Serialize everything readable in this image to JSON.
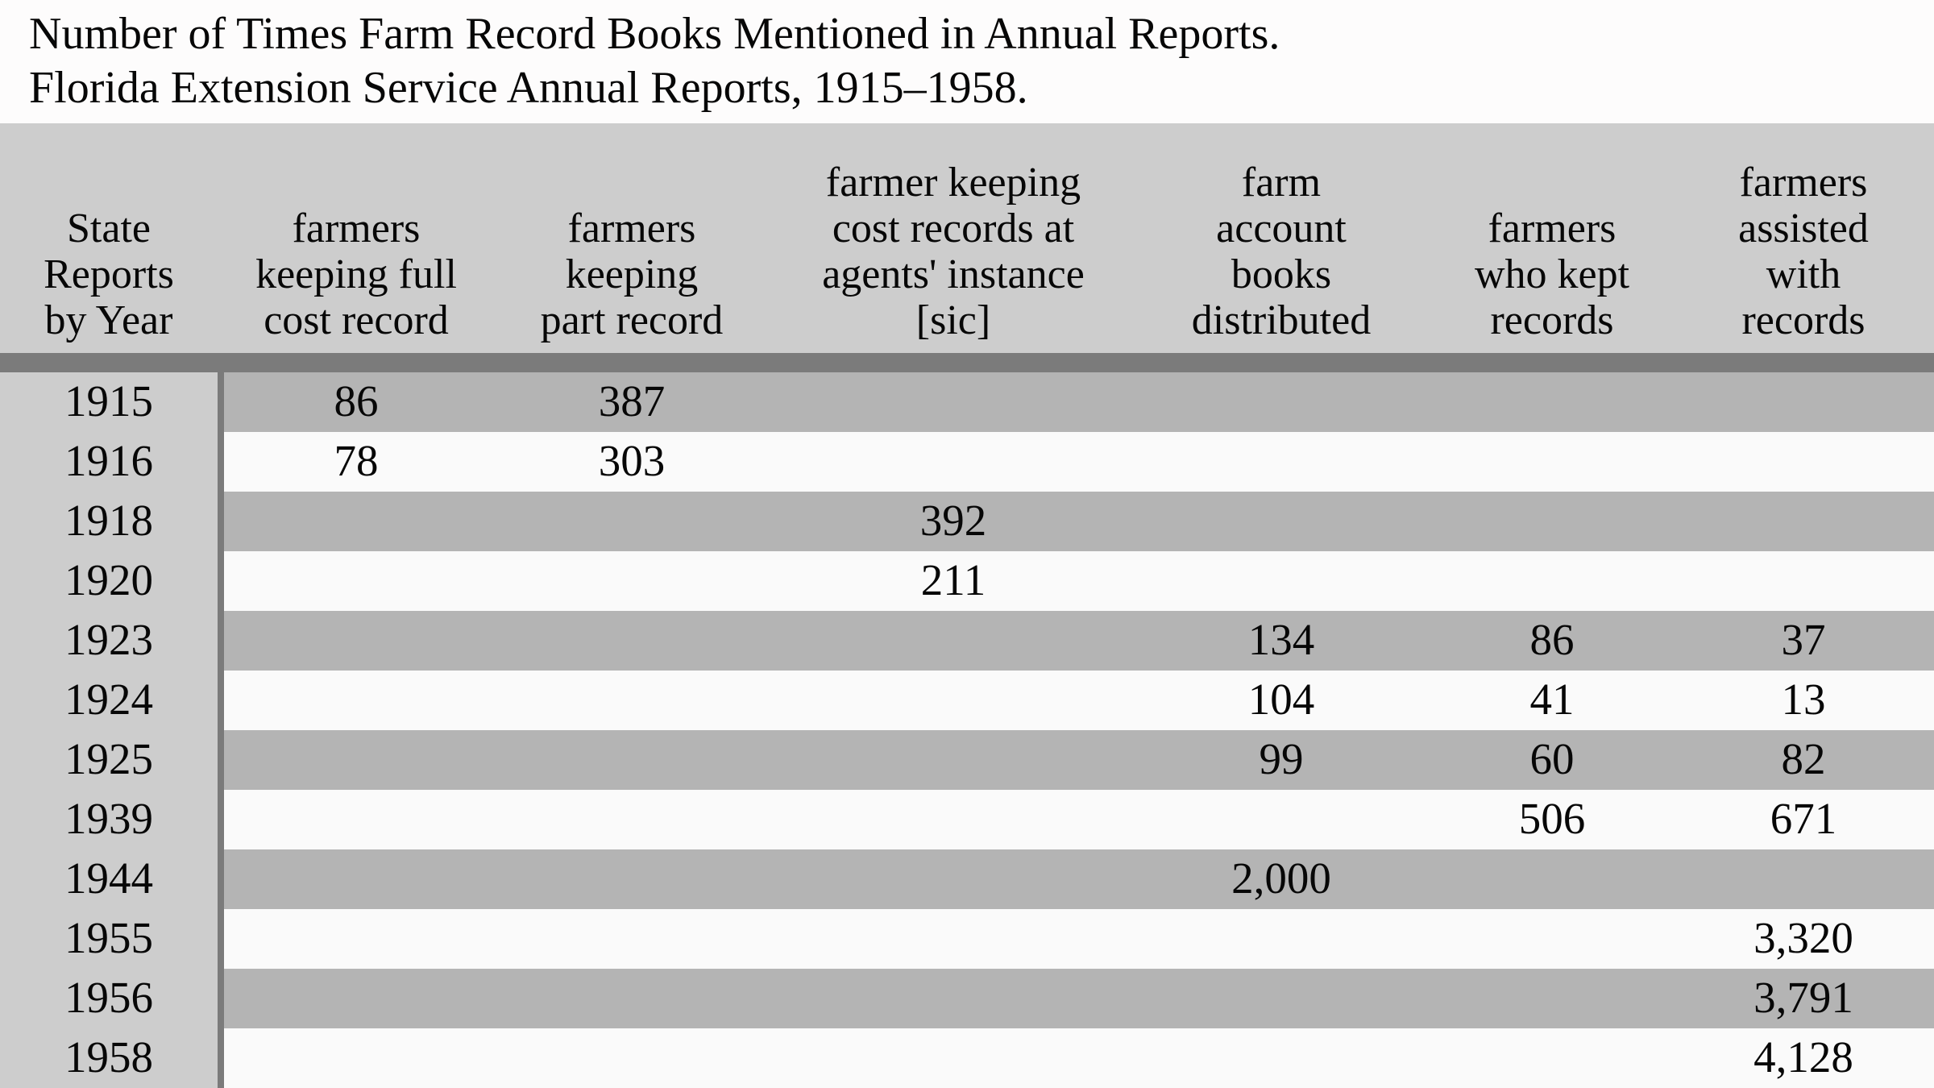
{
  "title": {
    "line1": "Number of Times Farm Record Books Mentioned in Annual Reports.",
    "line2": "Florida Extension Service Annual Reports, 1915–1958."
  },
  "table": {
    "columns": [
      {
        "key": "year",
        "label": "State Reports by Year",
        "label_lines": [
          "State",
          "Reports",
          "by Year"
        ]
      },
      {
        "key": "full_cost",
        "label": "farmers keeping full cost record",
        "label_lines": [
          "farmers",
          "keeping full",
          "cost record"
        ]
      },
      {
        "key": "part_record",
        "label": "farmers keeping part record",
        "label_lines": [
          "farmers",
          "keeping",
          "part record"
        ]
      },
      {
        "key": "agents_instance",
        "label": "farmer keeping cost records at agents' instance [sic]",
        "label_lines": [
          "farmer keeping",
          "cost records at",
          "agents' instance",
          "[sic]"
        ]
      },
      {
        "key": "books_distributed",
        "label": "farm account books distributed",
        "label_lines": [
          "farm",
          "account",
          "books",
          "distributed"
        ]
      },
      {
        "key": "kept_records",
        "label": "farmers who kept records",
        "label_lines": [
          "farmers",
          "who kept",
          "records"
        ]
      },
      {
        "key": "assisted_records",
        "label": "farmers assisted with records",
        "label_lines": [
          "farmers",
          "assisted",
          "with",
          "records"
        ]
      }
    ],
    "rows": [
      {
        "year": "1915",
        "full_cost": "86",
        "part_record": "387",
        "agents_instance": "",
        "books_distributed": "",
        "kept_records": "",
        "assisted_records": ""
      },
      {
        "year": "1916",
        "full_cost": "78",
        "part_record": "303",
        "agents_instance": "",
        "books_distributed": "",
        "kept_records": "",
        "assisted_records": ""
      },
      {
        "year": "1918",
        "full_cost": "",
        "part_record": "",
        "agents_instance": "392",
        "books_distributed": "",
        "kept_records": "",
        "assisted_records": ""
      },
      {
        "year": "1920",
        "full_cost": "",
        "part_record": "",
        "agents_instance": "211",
        "books_distributed": "",
        "kept_records": "",
        "assisted_records": ""
      },
      {
        "year": "1923",
        "full_cost": "",
        "part_record": "",
        "agents_instance": "",
        "books_distributed": "134",
        "kept_records": "86",
        "assisted_records": "37"
      },
      {
        "year": "1924",
        "full_cost": "",
        "part_record": "",
        "agents_instance": "",
        "books_distributed": "104",
        "kept_records": "41",
        "assisted_records": "13"
      },
      {
        "year": "1925",
        "full_cost": "",
        "part_record": "",
        "agents_instance": "",
        "books_distributed": "99",
        "kept_records": "60",
        "assisted_records": "82"
      },
      {
        "year": "1939",
        "full_cost": "",
        "part_record": "",
        "agents_instance": "",
        "books_distributed": "",
        "kept_records": "506",
        "assisted_records": "671"
      },
      {
        "year": "1944",
        "full_cost": "",
        "part_record": "",
        "agents_instance": "",
        "books_distributed": "2,000",
        "kept_records": "",
        "assisted_records": ""
      },
      {
        "year": "1955",
        "full_cost": "",
        "part_record": "",
        "agents_instance": "",
        "books_distributed": "",
        "kept_records": "",
        "assisted_records": "3,320"
      },
      {
        "year": "1956",
        "full_cost": "",
        "part_record": "",
        "agents_instance": "",
        "books_distributed": "",
        "kept_records": "",
        "assisted_records": "3,791"
      },
      {
        "year": "1958",
        "full_cost": "",
        "part_record": "",
        "agents_instance": "",
        "books_distributed": "",
        "kept_records": "",
        "assisted_records": "4,128"
      }
    ]
  },
  "colors": {
    "page_bg": "#fdfcfc",
    "header_bg": "#cdcdcd",
    "divider_bar": "#7b7b7b",
    "year_column_bg": "#cdcdcd",
    "row_stripe_gray": "#b4b4b4",
    "row_stripe_white": "#fafafa",
    "text": "#070707"
  }
}
